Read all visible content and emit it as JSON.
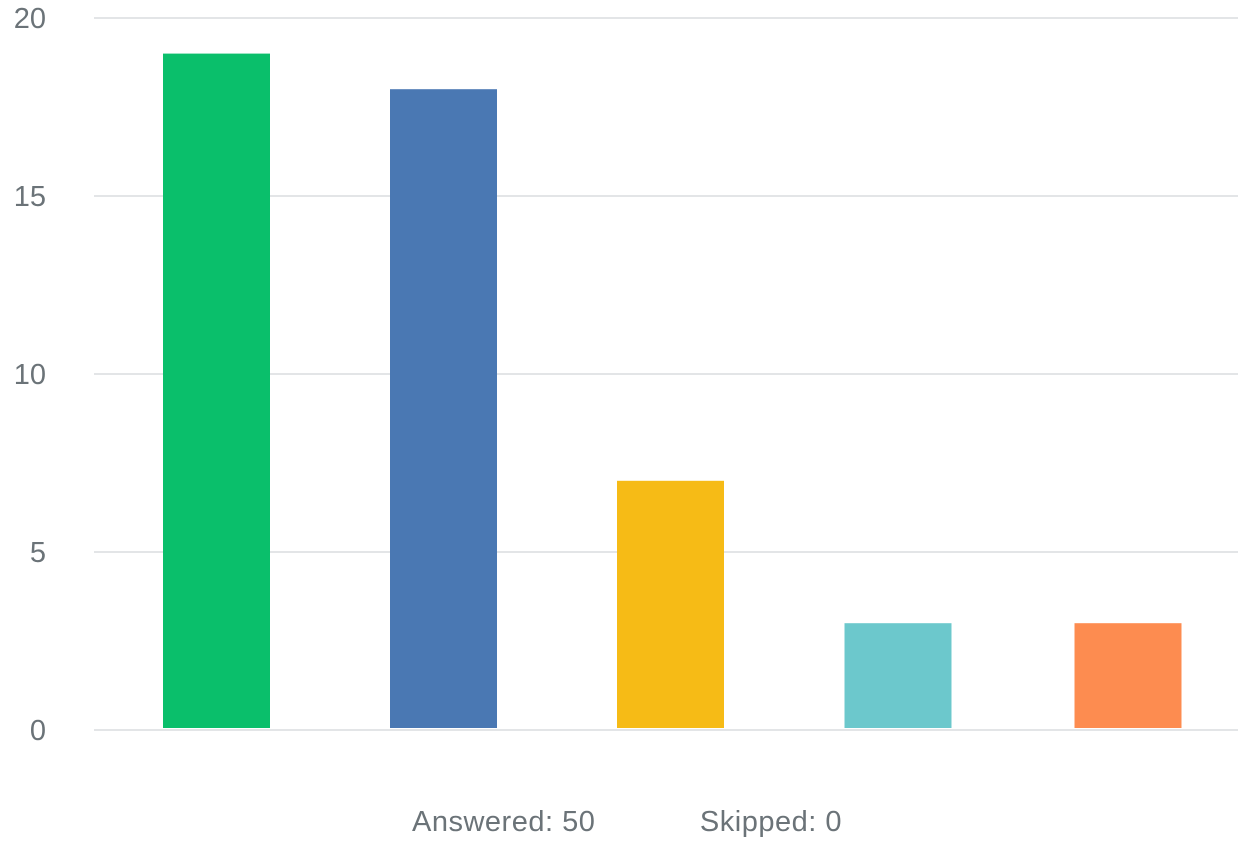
{
  "chart_data": {
    "type": "bar",
    "categories": [
      "",
      "",
      "",
      "",
      ""
    ],
    "values": [
      19,
      18,
      7,
      3,
      3
    ],
    "colors": [
      "#0abf6b",
      "#4a78b3",
      "#f6bb16",
      "#6cc8cc",
      "#fd8c50"
    ],
    "ylim": [
      0,
      20
    ],
    "yticks": [
      0,
      5,
      10,
      15,
      20
    ],
    "grid": true,
    "gridline_color": "#e3e5e7",
    "tick_label_color": "#6b7378",
    "title": "",
    "xlabel": "",
    "ylabel": ""
  },
  "footer": {
    "answered_label": "Answered:",
    "answered_count": 50,
    "skipped_label": "Skipped:",
    "skipped_count": 0
  }
}
